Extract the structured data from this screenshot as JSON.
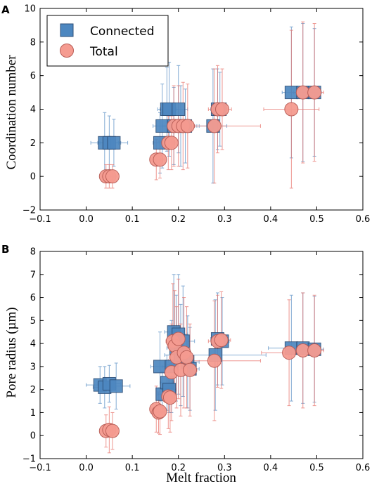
{
  "colors": {
    "connected": "#4d87c0",
    "connected_edge": "#2d4f78",
    "total": "#f59b90",
    "total_edge": "#b85c55",
    "connected_err": "#5a8fc5",
    "total_err": "#e8736b"
  },
  "legend": {
    "entries": [
      {
        "name": "Connected",
        "marker": "square"
      },
      {
        "name": "Total",
        "marker": "circle"
      }
    ],
    "placement": "top-left"
  },
  "chart_data": [
    {
      "panel": "A",
      "type": "scatter",
      "xlabel": "",
      "ylabel": "Coordination number",
      "xlim": [
        -0.1,
        0.6
      ],
      "ylim": [
        -2,
        10
      ],
      "xticks": [
        "−0.1",
        "0.0",
        "0.1",
        "0.2",
        "0.3",
        "0.4",
        "0.5",
        "0.6"
      ],
      "yticks": [
        "−2",
        "0",
        "2",
        "4",
        "6",
        "8",
        "10"
      ],
      "series": [
        {
          "name": "Connected",
          "marker": "square",
          "points": [
            {
              "x": 0.04,
              "y": 2.0,
              "xerr": 0.03,
              "yerr": 1.8
            },
            {
              "x": 0.05,
              "y": 2.0,
              "xerr": 0.025,
              "yerr": 1.6
            },
            {
              "x": 0.06,
              "y": 2.0,
              "xerr": 0.03,
              "yerr": 1.4
            },
            {
              "x": 0.16,
              "y": 2.0,
              "xerr": 0.015,
              "yerr": 1.8
            },
            {
              "x": 0.165,
              "y": 3.0,
              "xerr": 0.02,
              "yerr": 2.5
            },
            {
              "x": 0.175,
              "y": 4.0,
              "xerr": 0.02,
              "yerr": 2.5
            },
            {
              "x": 0.18,
              "y": 4.0,
              "xerr": 0.02,
              "yerr": 2.8
            },
            {
              "x": 0.19,
              "y": 3.0,
              "xerr": 0.025,
              "yerr": 2.3
            },
            {
              "x": 0.2,
              "y": 4.0,
              "xerr": 0.02,
              "yerr": 2.6
            },
            {
              "x": 0.205,
              "y": 3.0,
              "xerr": 0.03,
              "yerr": 2.4
            },
            {
              "x": 0.215,
              "y": 3.0,
              "xerr": 0.025,
              "yerr": 2.2
            },
            {
              "x": 0.275,
              "y": 3.0,
              "xerr": 0.03,
              "yerr": 3.4
            },
            {
              "x": 0.285,
              "y": 4.0,
              "xerr": 0.015,
              "yerr": 2.4
            },
            {
              "x": 0.29,
              "y": 4.0,
              "xerr": 0.015,
              "yerr": 2.2
            },
            {
              "x": 0.445,
              "y": 5.0,
              "xerr": 0.02,
              "yerr": 3.9
            },
            {
              "x": 0.47,
              "y": 5.0,
              "xerr": 0.02,
              "yerr": 4.1
            },
            {
              "x": 0.495,
              "y": 5.0,
              "xerr": 0.015,
              "yerr": 3.8
            }
          ]
        },
        {
          "name": "Total",
          "marker": "circle",
          "points": [
            {
              "x": 0.043,
              "y": 0.0,
              "xerr": 0.01,
              "yerr": 0.7
            },
            {
              "x": 0.05,
              "y": 0.0,
              "xerr": 0.01,
              "yerr": 0.7
            },
            {
              "x": 0.057,
              "y": 0.0,
              "xerr": 0.01,
              "yerr": 0.7
            },
            {
              "x": 0.152,
              "y": 1.0,
              "xerr": 0.01,
              "yerr": 1.2
            },
            {
              "x": 0.16,
              "y": 1.0,
              "xerr": 0.01,
              "yerr": 1.1
            },
            {
              "x": 0.178,
              "y": 2.0,
              "xerr": 0.01,
              "yerr": 1.6
            },
            {
              "x": 0.185,
              "y": 2.0,
              "xerr": 0.01,
              "yerr": 1.6
            },
            {
              "x": 0.19,
              "y": 3.0,
              "xerr": 0.015,
              "yerr": 2.4
            },
            {
              "x": 0.2,
              "y": 3.0,
              "xerr": 0.015,
              "yerr": 2.4
            },
            {
              "x": 0.21,
              "y": 3.0,
              "xerr": 0.015,
              "yerr": 2.6
            },
            {
              "x": 0.22,
              "y": 3.0,
              "xerr": 0.015,
              "yerr": 2.5
            },
            {
              "x": 0.278,
              "y": 3.0,
              "xerr": 0.1,
              "yerr": 3.4
            },
            {
              "x": 0.285,
              "y": 4.0,
              "xerr": 0.02,
              "yerr": 2.6
            },
            {
              "x": 0.295,
              "y": 4.0,
              "xerr": 0.02,
              "yerr": 2.4
            },
            {
              "x": 0.445,
              "y": 4.0,
              "xerr": 0.06,
              "yerr": 4.7
            },
            {
              "x": 0.47,
              "y": 5.0,
              "xerr": 0.025,
              "yerr": 4.2
            },
            {
              "x": 0.495,
              "y": 5.0,
              "xerr": 0.02,
              "yerr": 4.1
            }
          ]
        }
      ]
    },
    {
      "panel": "B",
      "type": "scatter",
      "xlabel": "Melt fraction",
      "ylabel": "Pore radius (µm)",
      "xlim": [
        -0.1,
        0.6
      ],
      "ylim": [
        -1,
        8
      ],
      "xticks": [
        "−0.1",
        "0.0",
        "0.1",
        "0.2",
        "0.3",
        "0.4",
        "0.5",
        "0.6"
      ],
      "yticks": [
        "−1",
        "0",
        "1",
        "2",
        "3",
        "4",
        "5",
        "6",
        "7",
        "8"
      ],
      "series": [
        {
          "name": "Connected",
          "marker": "square",
          "points": [
            {
              "x": 0.03,
              "y": 2.2,
              "xerr": 0.03,
              "yerr": 0.8
            },
            {
              "x": 0.04,
              "y": 2.1,
              "xerr": 0.025,
              "yerr": 0.9
            },
            {
              "x": 0.05,
              "y": 2.25,
              "xerr": 0.025,
              "yerr": 0.8
            },
            {
              "x": 0.065,
              "y": 2.15,
              "xerr": 0.03,
              "yerr": 1.0
            },
            {
              "x": 0.16,
              "y": 3.0,
              "xerr": 0.02,
              "yerr": 1.5
            },
            {
              "x": 0.165,
              "y": 1.8,
              "xerr": 0.01,
              "yerr": 1.0
            },
            {
              "x": 0.175,
              "y": 2.3,
              "xerr": 0.015,
              "yerr": 1.2
            },
            {
              "x": 0.18,
              "y": 2.0,
              "xerr": 0.015,
              "yerr": 1.0
            },
            {
              "x": 0.185,
              "y": 3.0,
              "xerr": 0.02,
              "yerr": 2.0
            },
            {
              "x": 0.19,
              "y": 4.5,
              "xerr": 0.02,
              "yerr": 2.5
            },
            {
              "x": 0.195,
              "y": 3.8,
              "xerr": 0.02,
              "yerr": 2.3
            },
            {
              "x": 0.2,
              "y": 4.4,
              "xerr": 0.02,
              "yerr": 2.6
            },
            {
              "x": 0.205,
              "y": 3.5,
              "xerr": 0.02,
              "yerr": 2.2
            },
            {
              "x": 0.21,
              "y": 4.1,
              "xerr": 0.025,
              "yerr": 2.4
            },
            {
              "x": 0.22,
              "y": 3.2,
              "xerr": 0.025,
              "yerr": 2.0
            },
            {
              "x": 0.225,
              "y": 2.9,
              "xerr": 0.02,
              "yerr": 1.8
            },
            {
              "x": 0.28,
              "y": 3.5,
              "xerr": 0.11,
              "yerr": 2.4
            },
            {
              "x": 0.285,
              "y": 4.2,
              "xerr": 0.015,
              "yerr": 2.0
            },
            {
              "x": 0.295,
              "y": 4.1,
              "xerr": 0.015,
              "yerr": 1.9
            },
            {
              "x": 0.445,
              "y": 3.8,
              "xerr": 0.05,
              "yerr": 2.3
            },
            {
              "x": 0.47,
              "y": 3.8,
              "xerr": 0.03,
              "yerr": 2.4
            },
            {
              "x": 0.495,
              "y": 3.75,
              "xerr": 0.02,
              "yerr": 2.3
            }
          ]
        },
        {
          "name": "Total",
          "marker": "circle",
          "points": [
            {
              "x": 0.043,
              "y": 0.2,
              "xerr": 0.01,
              "yerr": 0.7
            },
            {
              "x": 0.05,
              "y": 0.25,
              "xerr": 0.01,
              "yerr": 1.0
            },
            {
              "x": 0.057,
              "y": 0.2,
              "xerr": 0.01,
              "yerr": 0.8
            },
            {
              "x": 0.152,
              "y": 1.15,
              "xerr": 0.01,
              "yerr": 1.0
            },
            {
              "x": 0.157,
              "y": 1.0,
              "xerr": 0.01,
              "yerr": 0.9
            },
            {
              "x": 0.16,
              "y": 1.05,
              "xerr": 0.01,
              "yerr": 1.0
            },
            {
              "x": 0.178,
              "y": 1.7,
              "xerr": 0.01,
              "yerr": 1.4
            },
            {
              "x": 0.182,
              "y": 1.65,
              "xerr": 0.01,
              "yerr": 1.5
            },
            {
              "x": 0.185,
              "y": 2.75,
              "xerr": 0.015,
              "yerr": 2.1
            },
            {
              "x": 0.188,
              "y": 4.1,
              "xerr": 0.015,
              "yerr": 2.5
            },
            {
              "x": 0.192,
              "y": 3.9,
              "xerr": 0.015,
              "yerr": 2.4
            },
            {
              "x": 0.196,
              "y": 3.4,
              "xerr": 0.015,
              "yerr": 2.2
            },
            {
              "x": 0.2,
              "y": 4.2,
              "xerr": 0.015,
              "yerr": 2.6
            },
            {
              "x": 0.205,
              "y": 2.85,
              "xerr": 0.015,
              "yerr": 2.0
            },
            {
              "x": 0.212,
              "y": 3.6,
              "xerr": 0.015,
              "yerr": 2.4
            },
            {
              "x": 0.218,
              "y": 3.4,
              "xerr": 0.015,
              "yerr": 2.2
            },
            {
              "x": 0.225,
              "y": 2.85,
              "xerr": 0.015,
              "yerr": 2.0
            },
            {
              "x": 0.278,
              "y": 3.25,
              "xerr": 0.1,
              "yerr": 2.6
            },
            {
              "x": 0.285,
              "y": 4.1,
              "xerr": 0.02,
              "yerr": 2.0
            },
            {
              "x": 0.293,
              "y": 4.15,
              "xerr": 0.02,
              "yerr": 2.1
            },
            {
              "x": 0.44,
              "y": 3.6,
              "xerr": 0.06,
              "yerr": 2.3
            },
            {
              "x": 0.47,
              "y": 3.7,
              "xerr": 0.025,
              "yerr": 2.5
            },
            {
              "x": 0.495,
              "y": 3.7,
              "xerr": 0.02,
              "yerr": 2.4
            }
          ]
        }
      ]
    }
  ]
}
